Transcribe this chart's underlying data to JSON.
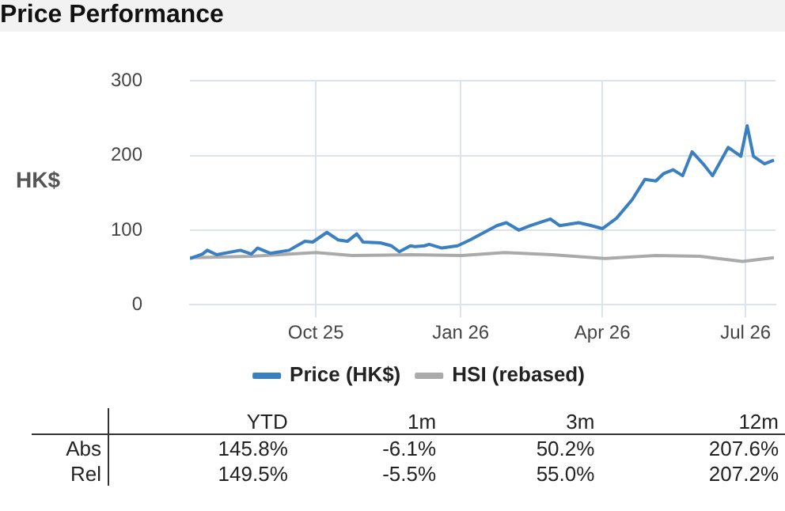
{
  "chart_data": {
    "type": "line",
    "title": "Price Performance",
    "ylabel": "HK$",
    "xlim": [
      "2025-07-13",
      "2026-07-20"
    ],
    "xticks": [
      {
        "value": "2025-10-01",
        "label": "Oct 25"
      },
      {
        "value": "2026-01-01",
        "label": "Jan 26"
      },
      {
        "value": "2026-04-01",
        "label": "Apr 26"
      },
      {
        "value": "2026-07-01",
        "label": "Jul 26"
      }
    ],
    "ylim": [
      0,
      300
    ],
    "yticks": [
      0,
      100,
      200,
      300
    ],
    "grid": true,
    "legend": "bottom",
    "marker": "none",
    "line_style": "solid",
    "series": [
      {
        "name": "Price (HK$)",
        "color": "#3a7fc1",
        "x": [
          "2025-07-13",
          "2025-07-21",
          "2025-07-24",
          "2025-07-30",
          "2025-08-14",
          "2025-08-21",
          "2025-08-25",
          "2025-09-02",
          "2025-09-14",
          "2025-09-24",
          "2025-09-29",
          "2025-10-08",
          "2025-10-15",
          "2025-10-21",
          "2025-10-27",
          "2025-10-31",
          "2025-11-11",
          "2025-11-18",
          "2025-11-23",
          "2025-11-30",
          "2025-12-03",
          "2025-12-09",
          "2025-12-12",
          "2025-12-20",
          "2025-12-30",
          "2026-01-07",
          "2026-01-15",
          "2026-01-24",
          "2026-01-30",
          "2026-02-07",
          "2026-02-14",
          "2026-02-27",
          "2026-03-05",
          "2026-03-17",
          "2026-03-25",
          "2026-04-01",
          "2026-04-10",
          "2026-04-20",
          "2026-04-28",
          "2026-05-05",
          "2026-05-10",
          "2026-05-16",
          "2026-05-22",
          "2026-05-28",
          "2026-06-04",
          "2026-06-10",
          "2026-06-20",
          "2026-06-28",
          "2026-07-02",
          "2026-07-06",
          "2026-07-13",
          "2026-07-19"
        ],
        "values": [
          62,
          68,
          73,
          67,
          73,
          68,
          76,
          69,
          73,
          85,
          84,
          97,
          87,
          85,
          95,
          84,
          83,
          79,
          71,
          79,
          78,
          79,
          81,
          76,
          79,
          87,
          96,
          106,
          110,
          100,
          106,
          115,
          106,
          110,
          106,
          102,
          116,
          141,
          168,
          166,
          176,
          181,
          173,
          205,
          189,
          173,
          211,
          199,
          240,
          199,
          189,
          194
        ]
      },
      {
        "name": "HSI (rebased)",
        "color": "#aaaaaa",
        "x": [
          "2025-07-13",
          "2025-08-21",
          "2025-10-01",
          "2025-10-24",
          "2025-11-30",
          "2026-01-02",
          "2026-01-29",
          "2026-02-28",
          "2026-04-03",
          "2026-05-05",
          "2026-06-02",
          "2026-06-29",
          "2026-07-19"
        ],
        "values": [
          63,
          65,
          70,
          66,
          67,
          66,
          70,
          67,
          62,
          66,
          65,
          58,
          63
        ]
      }
    ],
    "annotations": [
      "YTD",
      "1m",
      "3m",
      "12m",
      "Abs",
      "145.8%",
      "-6.1%",
      "50.2%",
      "207.6%",
      "Rel",
      "149.5%",
      "-5.5%",
      "55.0%",
      "207.2%"
    ]
  }
}
